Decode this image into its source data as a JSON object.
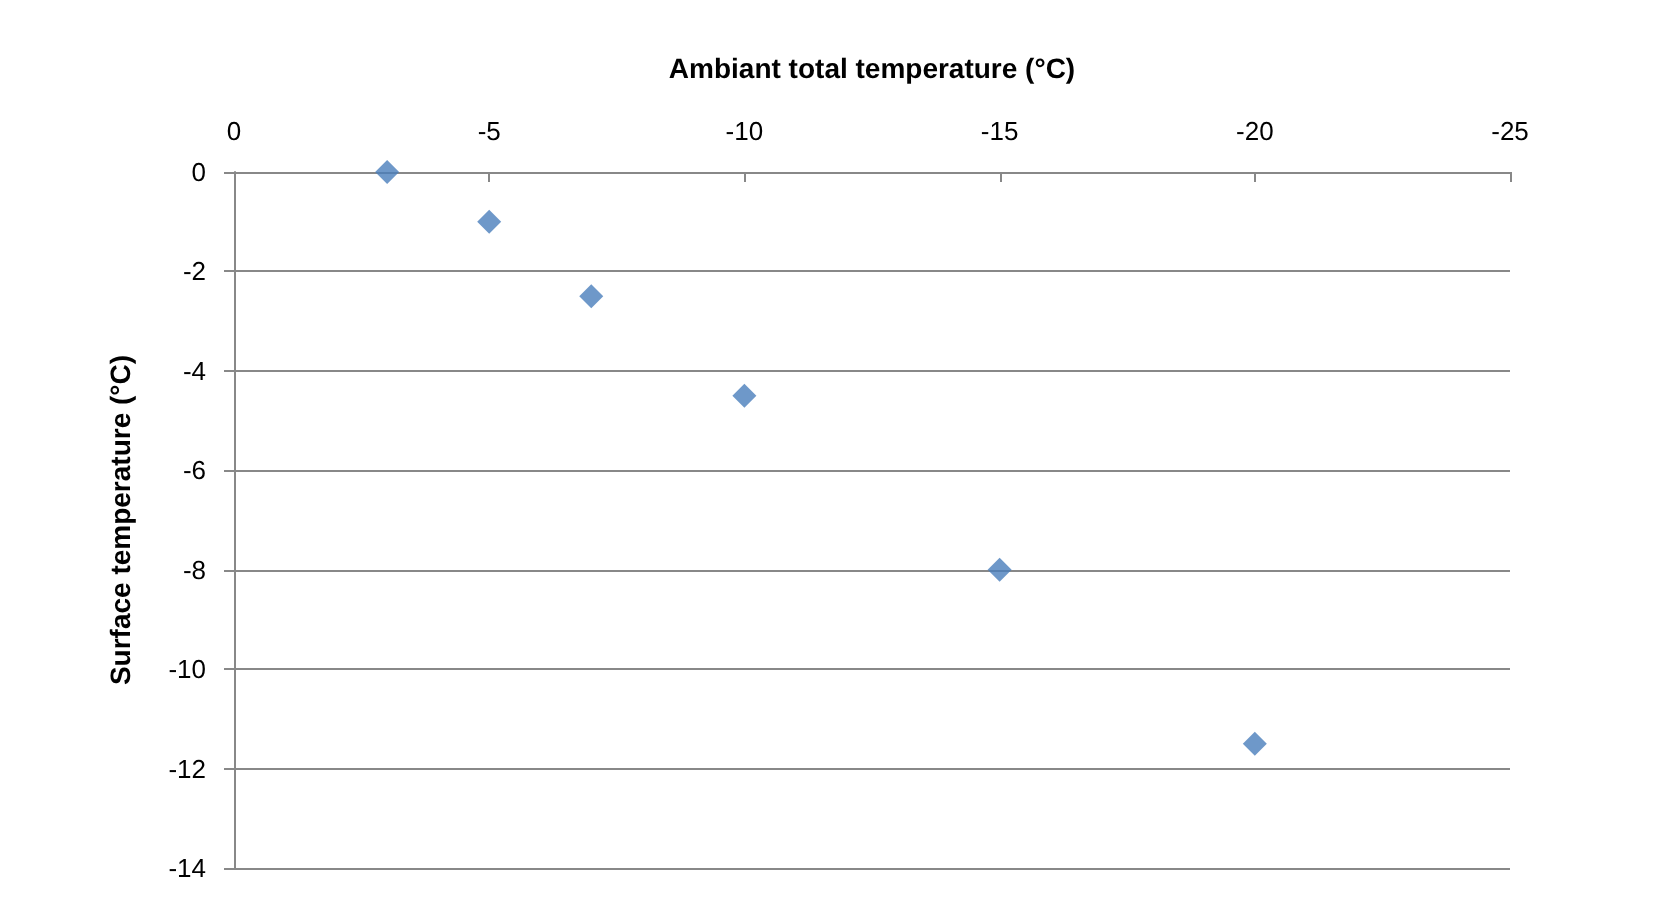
{
  "chart_data": {
    "type": "scatter",
    "xlabel": "Ambiant total temperature (°C)",
    "ylabel": "Surface temperature (°C)",
    "x": [
      -3,
      -5,
      -7,
      -10,
      -15,
      -20
    ],
    "series": [
      {
        "color": "#4a7ebb",
        "values": [
          0,
          -1,
          -2.5,
          -4.5,
          -8,
          -11.5
        ]
      }
    ],
    "xlim": [
      0,
      -25
    ],
    "xticks": [
      0,
      -5,
      -10,
      -15,
      -20,
      -25
    ],
    "ylim": [
      -14,
      0
    ],
    "yticks": [
      -14,
      -12,
      -10,
      -8,
      -6,
      -4,
      -2,
      0
    ],
    "grid": "y",
    "marker": "diamond"
  }
}
